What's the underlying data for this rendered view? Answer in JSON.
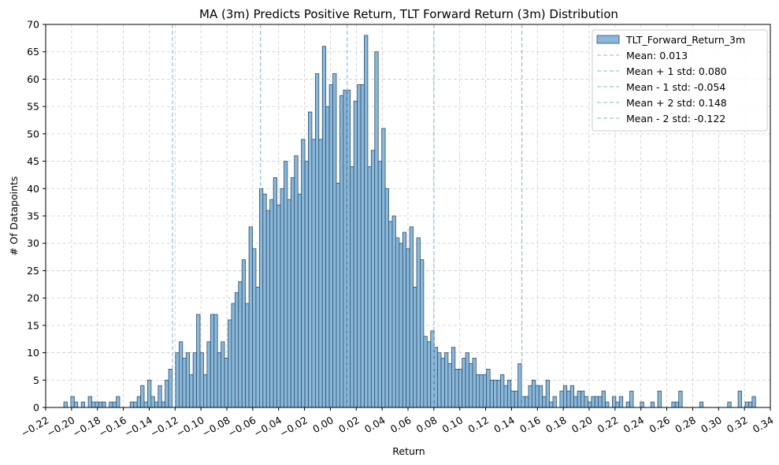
{
  "chart_data": {
    "type": "bar",
    "title": "MA (3m) Predicts Positive Return, TLT Forward Return (3m) Distribution",
    "xlabel": "Return",
    "ylabel": "# Of Datapoints",
    "xlim": [
      -0.22,
      0.34
    ],
    "ylim": [
      0,
      70
    ],
    "x_ticks": [
      -0.22,
      -0.2,
      -0.18,
      -0.16,
      -0.14,
      -0.12,
      -0.1,
      -0.08,
      -0.06,
      -0.04,
      -0.02,
      0.0,
      0.02,
      0.04,
      0.06,
      0.08,
      0.1,
      0.12,
      0.14,
      0.16,
      0.18,
      0.2,
      0.22,
      0.24,
      0.26,
      0.28,
      0.3,
      0.32,
      0.34
    ],
    "x_tick_labels": [
      "−0.22",
      "−0.20",
      "−0.18",
      "−0.16",
      "−0.14",
      "−0.12",
      "−0.10",
      "−0.08",
      "−0.06",
      "−0.04",
      "−0.02",
      "0.00",
      "0.02",
      "0.04",
      "0.06",
      "0.08",
      "0.10",
      "0.12",
      "0.14",
      "0.16",
      "0.18",
      "0.20",
      "0.22",
      "0.24",
      "0.26",
      "0.28",
      "0.30",
      "0.32",
      "0.34"
    ],
    "y_ticks": [
      0,
      5,
      10,
      15,
      20,
      25,
      30,
      35,
      40,
      45,
      50,
      55,
      60,
      65,
      70
    ],
    "grid": true,
    "bar_color": "#8ab8da",
    "bar_edge_color": "#2f4f6a",
    "line_color": "#8ab8da",
    "bin_start": -0.206,
    "bin_width": 0.0027,
    "counts": [
      1,
      0,
      2,
      1,
      0,
      1,
      0,
      2,
      1,
      1,
      1,
      1,
      0,
      1,
      1,
      2,
      0,
      0,
      0,
      1,
      1,
      2,
      4,
      1,
      5,
      2,
      1,
      4,
      1,
      5,
      7,
      0,
      10,
      12,
      9,
      10,
      6,
      10,
      17,
      10,
      6,
      12,
      17,
      17,
      10,
      12,
      9,
      16,
      19,
      21,
      23,
      27,
      19,
      33,
      29,
      22,
      40,
      39,
      36,
      38,
      42,
      37,
      40,
      45,
      38,
      42,
      46,
      39,
      49,
      45,
      54,
      49,
      61,
      49,
      66,
      55,
      59,
      61,
      41,
      57,
      58,
      58,
      44,
      56,
      59,
      59,
      68,
      44,
      47,
      65,
      45,
      51,
      40,
      34,
      35,
      31,
      30,
      32,
      29,
      33,
      22,
      31,
      27,
      13,
      12,
      14,
      11,
      10,
      9,
      10,
      8,
      11,
      7,
      7,
      9,
      10,
      8,
      9,
      6,
      6,
      6,
      7,
      5,
      5,
      5,
      6,
      4,
      5,
      3,
      3,
      8,
      2,
      2,
      4,
      5,
      4,
      4,
      2,
      5,
      1,
      2,
      0,
      3,
      4,
      3,
      4,
      2,
      3,
      3,
      2,
      1,
      2,
      2,
      2,
      3,
      1,
      0,
      2,
      1,
      2,
      0,
      1,
      3,
      0,
      0,
      1,
      0,
      0,
      1,
      0,
      3,
      0,
      0,
      0,
      1,
      1,
      3,
      0,
      0,
      0,
      0,
      0,
      1,
      0,
      0,
      0,
      0,
      0,
      0,
      0,
      1,
      0,
      0,
      3,
      0,
      1,
      1,
      2
    ],
    "vlines": [
      {
        "label": "Mean: 0.013",
        "x": 0.013
      },
      {
        "label": "Mean + 1 std: 0.080",
        "x": 0.08
      },
      {
        "label": "Mean - 1 std: -0.054",
        "x": -0.054
      },
      {
        "label": "Mean + 2 std: 0.148",
        "x": 0.148
      },
      {
        "label": "Mean - 2 std: -0.122",
        "x": -0.122
      }
    ],
    "series": [
      {
        "name": "TLT_Forward_Return_3m"
      }
    ],
    "legend_position": "top-right"
  }
}
